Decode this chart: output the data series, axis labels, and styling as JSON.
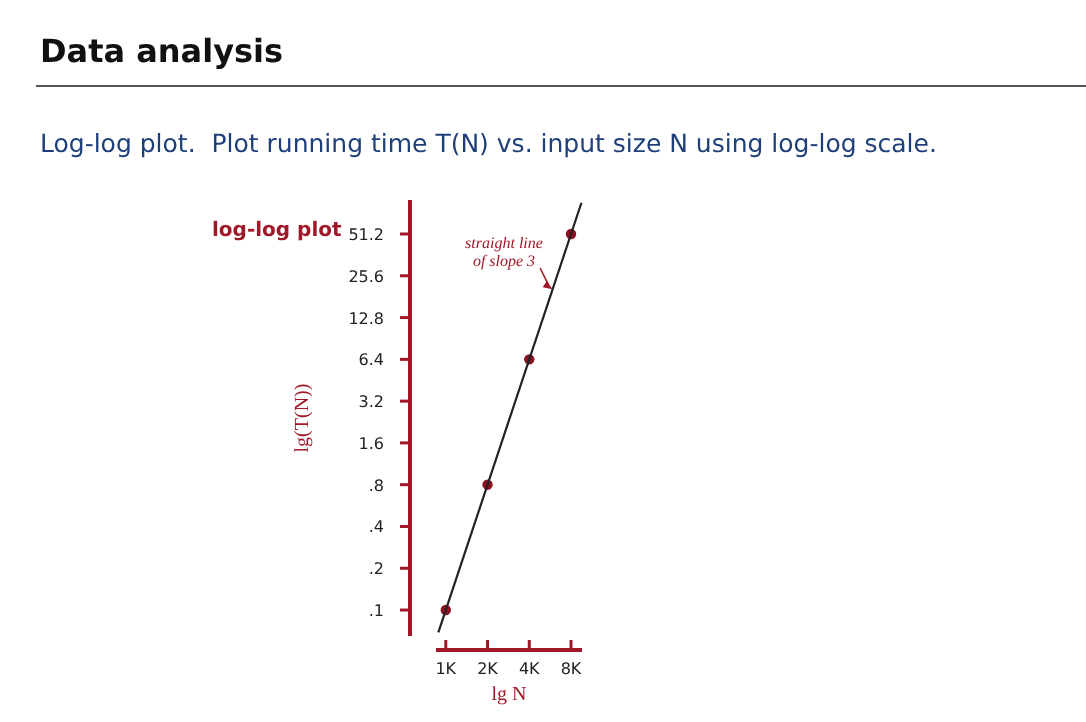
{
  "chart_data": {
    "type": "scatter",
    "title": "Data analysis",
    "subtitle": "Log-log plot.  Plot running time T(N) vs. input size N using log-log scale.",
    "xlabel": "lg N",
    "ylabel": "lg(T(N))",
    "x": [
      1000,
      2000,
      4000,
      8000
    ],
    "series": [
      {
        "type": "scatter",
        "color": "#8b1020",
        "values": [
          0.1,
          0.8,
          6.4,
          51.2
        ],
        "marker": "circle"
      },
      {
        "type": "line",
        "color": "#222222",
        "x": [
          884,
          9510
        ],
        "values": [
          0.069,
          86
        ],
        "line_style": "solid"
      }
    ],
    "log": "xy",
    "xlim": [
      850,
      9600
    ],
    "ylim": [
      0.065,
      90
    ],
    "xticks": [
      {
        "value": 1000,
        "label": "1K"
      },
      {
        "value": 2000,
        "label": "2K"
      },
      {
        "value": 4000,
        "label": "4K"
      },
      {
        "value": 8000,
        "label": "8K"
      }
    ],
    "yticks": [
      {
        "value": 0.1,
        "label": ".1"
      },
      {
        "value": 0.2,
        "label": ".2"
      },
      {
        "value": 0.4,
        "label": ".4"
      },
      {
        "value": 0.8,
        "label": ".8"
      },
      1.6,
      3.2,
      6.4,
      12.8,
      25.6,
      51.2
    ],
    "annotations": [
      "log-log plot",
      {
        "text": "straight line of slope 3",
        "x": 5900,
        "y": 20.5
      }
    ]
  }
}
